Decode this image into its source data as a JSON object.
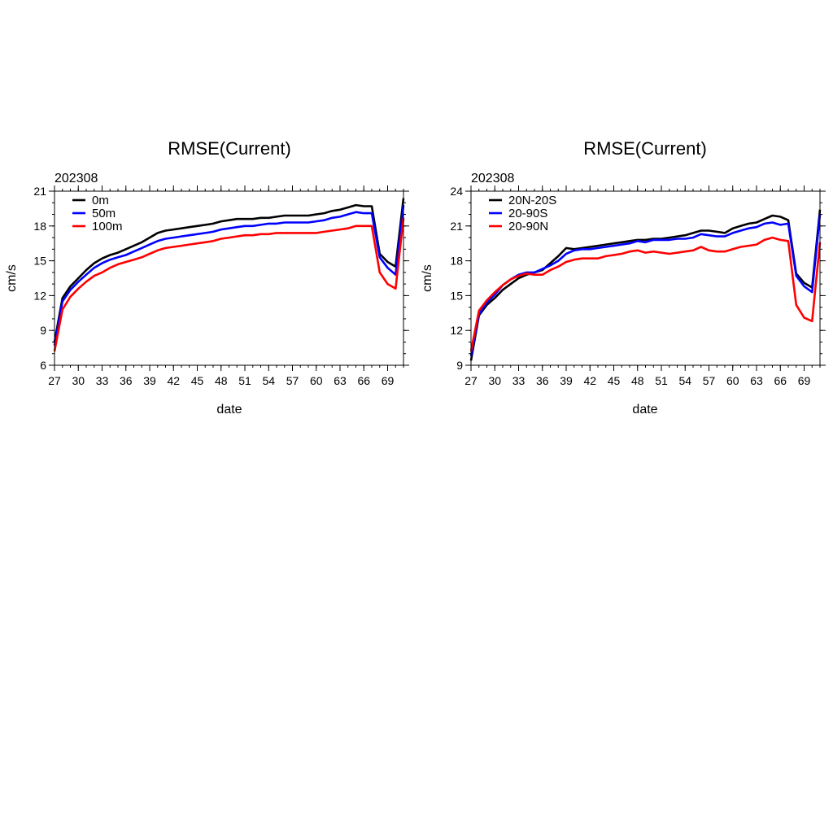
{
  "chart_data": [
    {
      "type": "line",
      "title": "RMSE(Current)",
      "subtitle": "202308",
      "xlabel": "date",
      "ylabel": "cm/s",
      "xlim": [
        27,
        71
      ],
      "ylim": [
        6,
        21
      ],
      "x_ticks": [
        27,
        30,
        33,
        36,
        39,
        42,
        45,
        48,
        51,
        54,
        57,
        60,
        63,
        66,
        69
      ],
      "y_ticks": [
        6,
        9,
        12,
        15,
        18,
        21
      ],
      "legend_position": "top-left",
      "x": [
        27,
        28,
        29,
        30,
        31,
        32,
        33,
        34,
        35,
        36,
        37,
        38,
        39,
        40,
        41,
        42,
        43,
        44,
        45,
        46,
        47,
        48,
        49,
        50,
        51,
        52,
        53,
        54,
        55,
        56,
        57,
        58,
        59,
        60,
        61,
        62,
        63,
        64,
        65,
        66,
        67,
        68,
        69,
        70,
        71
      ],
      "series": [
        {
          "name": "0m",
          "color": "#000000",
          "values": [
            8.0,
            11.8,
            12.8,
            13.5,
            14.2,
            14.8,
            15.2,
            15.5,
            15.7,
            16.0,
            16.3,
            16.6,
            17.0,
            17.4,
            17.6,
            17.7,
            17.8,
            17.9,
            18.0,
            18.1,
            18.2,
            18.4,
            18.5,
            18.6,
            18.6,
            18.6,
            18.7,
            18.7,
            18.8,
            18.9,
            18.9,
            18.9,
            18.9,
            19.0,
            19.1,
            19.3,
            19.4,
            19.6,
            19.8,
            19.7,
            19.7,
            15.6,
            14.9,
            14.5,
            20.4
          ]
        },
        {
          "name": "50m",
          "color": "#0000ff",
          "values": [
            7.7,
            11.5,
            12.5,
            13.2,
            13.8,
            14.4,
            14.8,
            15.1,
            15.3,
            15.5,
            15.8,
            16.1,
            16.4,
            16.7,
            16.9,
            17.0,
            17.1,
            17.2,
            17.3,
            17.4,
            17.5,
            17.7,
            17.8,
            17.9,
            18.0,
            18.0,
            18.1,
            18.2,
            18.2,
            18.3,
            18.3,
            18.3,
            18.3,
            18.4,
            18.5,
            18.7,
            18.8,
            19.0,
            19.2,
            19.1,
            19.1,
            15.3,
            14.4,
            13.8,
            19.8
          ]
        },
        {
          "name": "100m",
          "color": "#ff0000",
          "values": [
            7.2,
            10.8,
            11.9,
            12.6,
            13.2,
            13.7,
            14.0,
            14.4,
            14.7,
            14.9,
            15.1,
            15.3,
            15.6,
            15.9,
            16.1,
            16.2,
            16.3,
            16.4,
            16.5,
            16.6,
            16.7,
            16.9,
            17.0,
            17.1,
            17.2,
            17.2,
            17.3,
            17.3,
            17.4,
            17.4,
            17.4,
            17.4,
            17.4,
            17.4,
            17.5,
            17.6,
            17.7,
            17.8,
            18.0,
            18.0,
            18.0,
            14.0,
            13.0,
            12.6,
            18.7
          ]
        }
      ]
    },
    {
      "type": "line",
      "title": "RMSE(Current)",
      "subtitle": "202308",
      "xlabel": "date",
      "ylabel": "cm/s",
      "xlim": [
        27,
        71
      ],
      "ylim": [
        9,
        24
      ],
      "x_ticks": [
        27,
        30,
        33,
        36,
        39,
        42,
        45,
        48,
        51,
        54,
        57,
        60,
        63,
        66,
        69
      ],
      "y_ticks": [
        9,
        12,
        15,
        18,
        21,
        24
      ],
      "legend_position": "top-left",
      "x": [
        27,
        28,
        29,
        30,
        31,
        32,
        33,
        34,
        35,
        36,
        37,
        38,
        39,
        40,
        41,
        42,
        43,
        44,
        45,
        46,
        47,
        48,
        49,
        50,
        51,
        52,
        53,
        54,
        55,
        56,
        57,
        58,
        59,
        60,
        61,
        62,
        63,
        64,
        65,
        66,
        67,
        68,
        69,
        70,
        71
      ],
      "series": [
        {
          "name": "20N-20S",
          "color": "#000000",
          "values": [
            9.4,
            13.3,
            14.2,
            14.8,
            15.5,
            16.0,
            16.5,
            16.8,
            17.0,
            17.2,
            17.8,
            18.4,
            19.1,
            19.0,
            19.1,
            19.2,
            19.3,
            19.4,
            19.5,
            19.6,
            19.7,
            19.8,
            19.8,
            19.9,
            19.9,
            20.0,
            20.1,
            20.2,
            20.4,
            20.6,
            20.6,
            20.5,
            20.4,
            20.8,
            21.0,
            21.2,
            21.3,
            21.6,
            21.9,
            21.8,
            21.5,
            16.9,
            16.1,
            15.7,
            22.4
          ]
        },
        {
          "name": "20-90S",
          "color": "#0000ff",
          "values": [
            9.8,
            13.4,
            14.4,
            15.1,
            15.9,
            16.4,
            16.8,
            17.0,
            17.0,
            17.3,
            17.6,
            18.0,
            18.6,
            18.9,
            19.0,
            19.0,
            19.1,
            19.2,
            19.3,
            19.4,
            19.5,
            19.7,
            19.6,
            19.8,
            19.8,
            19.8,
            19.9,
            19.9,
            20.0,
            20.3,
            20.2,
            20.1,
            20.1,
            20.4,
            20.6,
            20.8,
            20.9,
            21.2,
            21.3,
            21.1,
            21.2,
            16.7,
            15.8,
            15.3,
            22.0
          ]
        },
        {
          "name": "20-90N",
          "color": "#ff0000",
          "values": [
            10.2,
            13.7,
            14.6,
            15.3,
            15.9,
            16.4,
            16.7,
            16.9,
            16.8,
            16.8,
            17.2,
            17.5,
            17.9,
            18.1,
            18.2,
            18.2,
            18.2,
            18.4,
            18.5,
            18.6,
            18.8,
            18.9,
            18.7,
            18.8,
            18.7,
            18.6,
            18.7,
            18.8,
            18.9,
            19.2,
            18.9,
            18.8,
            18.8,
            19.0,
            19.2,
            19.3,
            19.4,
            19.8,
            20.0,
            19.8,
            19.7,
            14.2,
            13.1,
            12.8,
            19.6
          ]
        }
      ]
    }
  ]
}
